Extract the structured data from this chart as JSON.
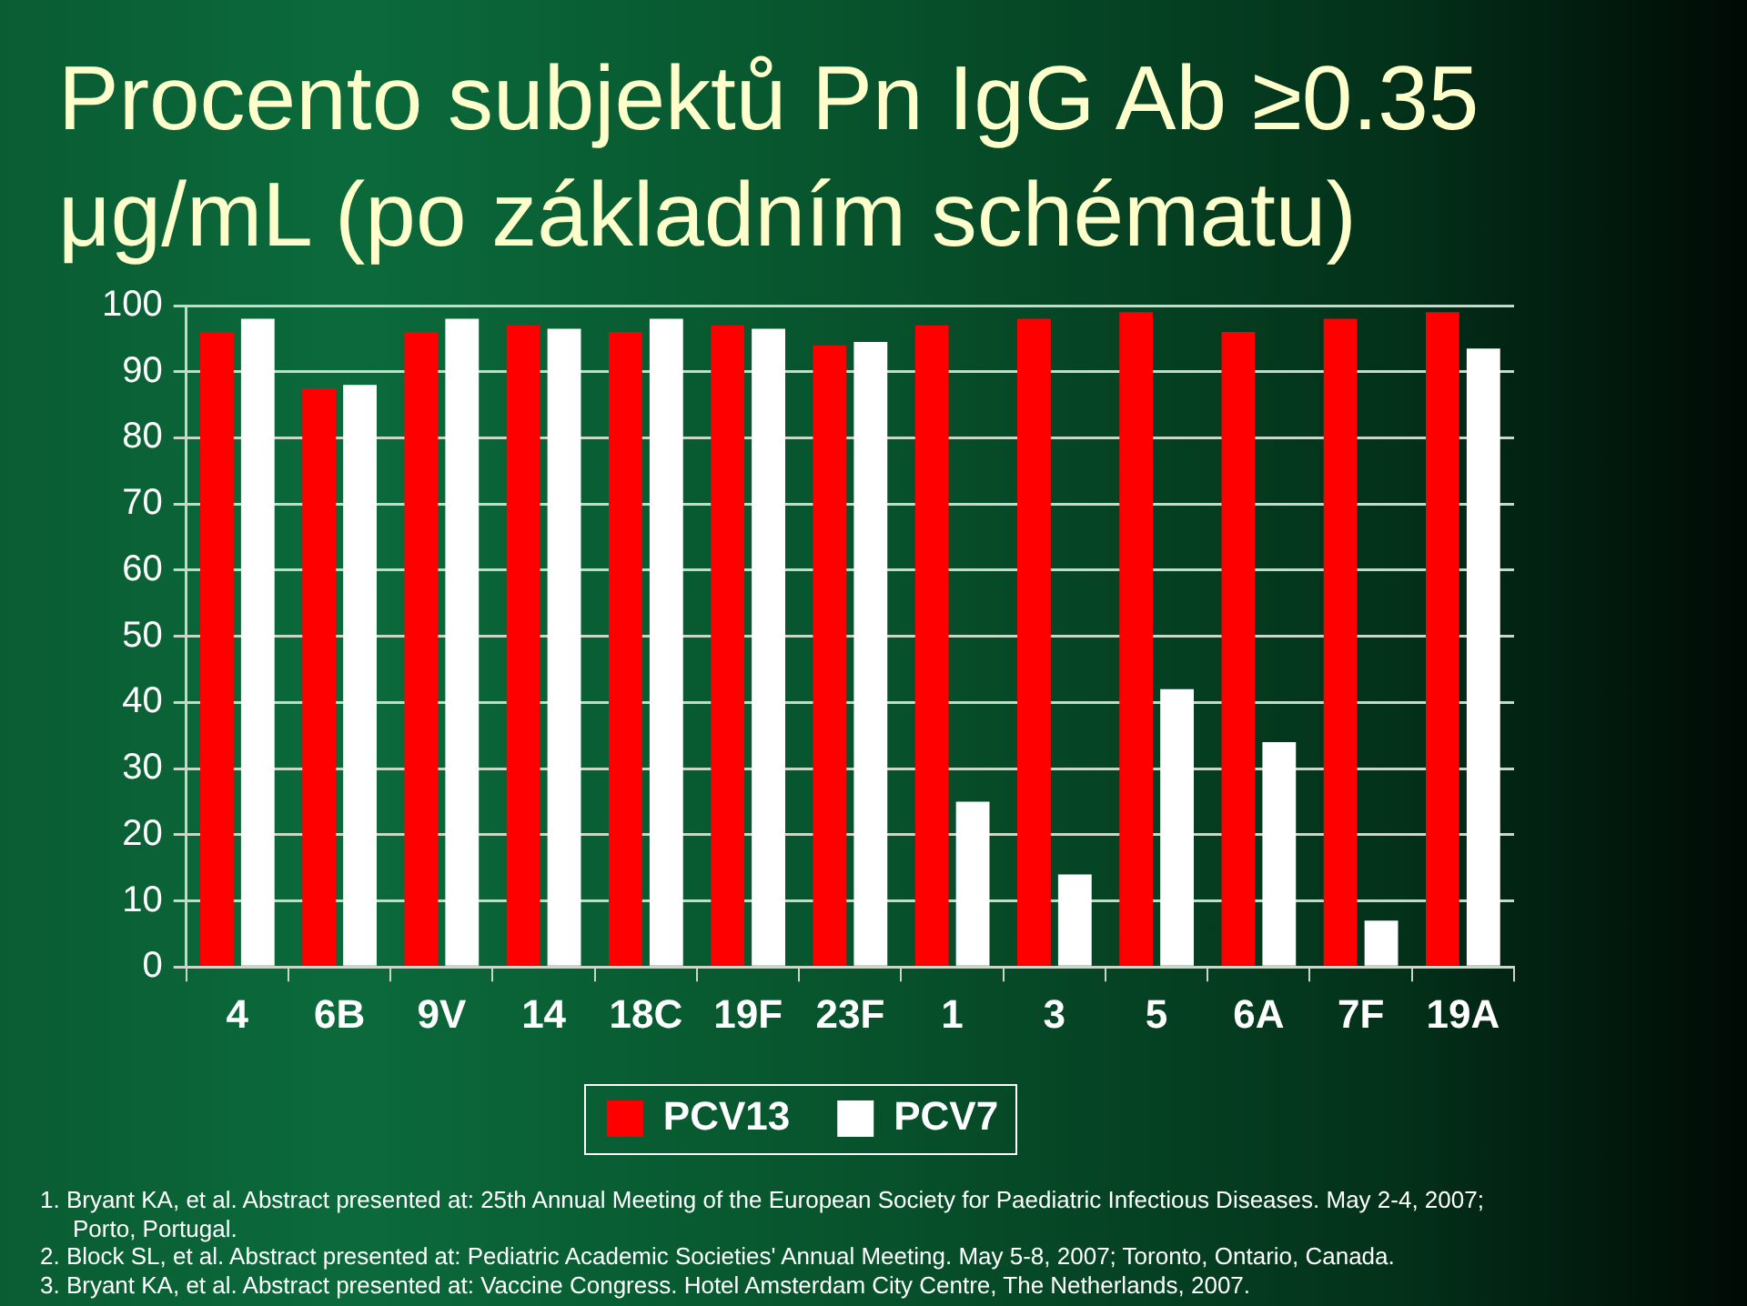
{
  "chart_data": {
    "type": "bar",
    "title": "Procento subjektů Pn IgG Ab ≥0.35 μg/mL (po základním schématu)",
    "categories": [
      "4",
      "6B",
      "9V",
      "14",
      "18C",
      "19F",
      "23F",
      "1",
      "3",
      "5",
      "6A",
      "7F",
      "19A"
    ],
    "series": [
      {
        "name": "PCV13",
        "color": "#ff0000",
        "values": [
          96,
          87.5,
          96,
          97,
          96,
          97,
          94,
          97,
          98,
          99,
          96,
          98,
          99
        ]
      },
      {
        "name": "PCV7",
        "color": "#ffffff",
        "values": [
          98,
          88,
          98,
          96.5,
          98,
          96.5,
          94.5,
          25,
          14,
          42,
          34,
          7,
          93.5
        ]
      }
    ],
    "ylim": [
      0,
      100
    ],
    "yticks": [
      0,
      10,
      20,
      30,
      40,
      50,
      60,
      70,
      80,
      90,
      100
    ],
    "grid": "y",
    "legend": "bottom",
    "annotations": [
      "1. Bryant KA, et al. Abstract presented at: 25th Annual Meeting of the European Society for Paediatric Infectious Diseases. May 2-4, 2007; Porto, Portugal.",
      "2. Block SL, et al. Abstract presented at: Pediatric Academic Societies' Annual Meeting. May 5-8, 2007; Toronto, Ontario, Canada.",
      "3. Bryant KA, et al. Abstract presented at: Vaccine Congress. Hotel Amsterdam City Centre, The Netherlands, 2007."
    ]
  }
}
